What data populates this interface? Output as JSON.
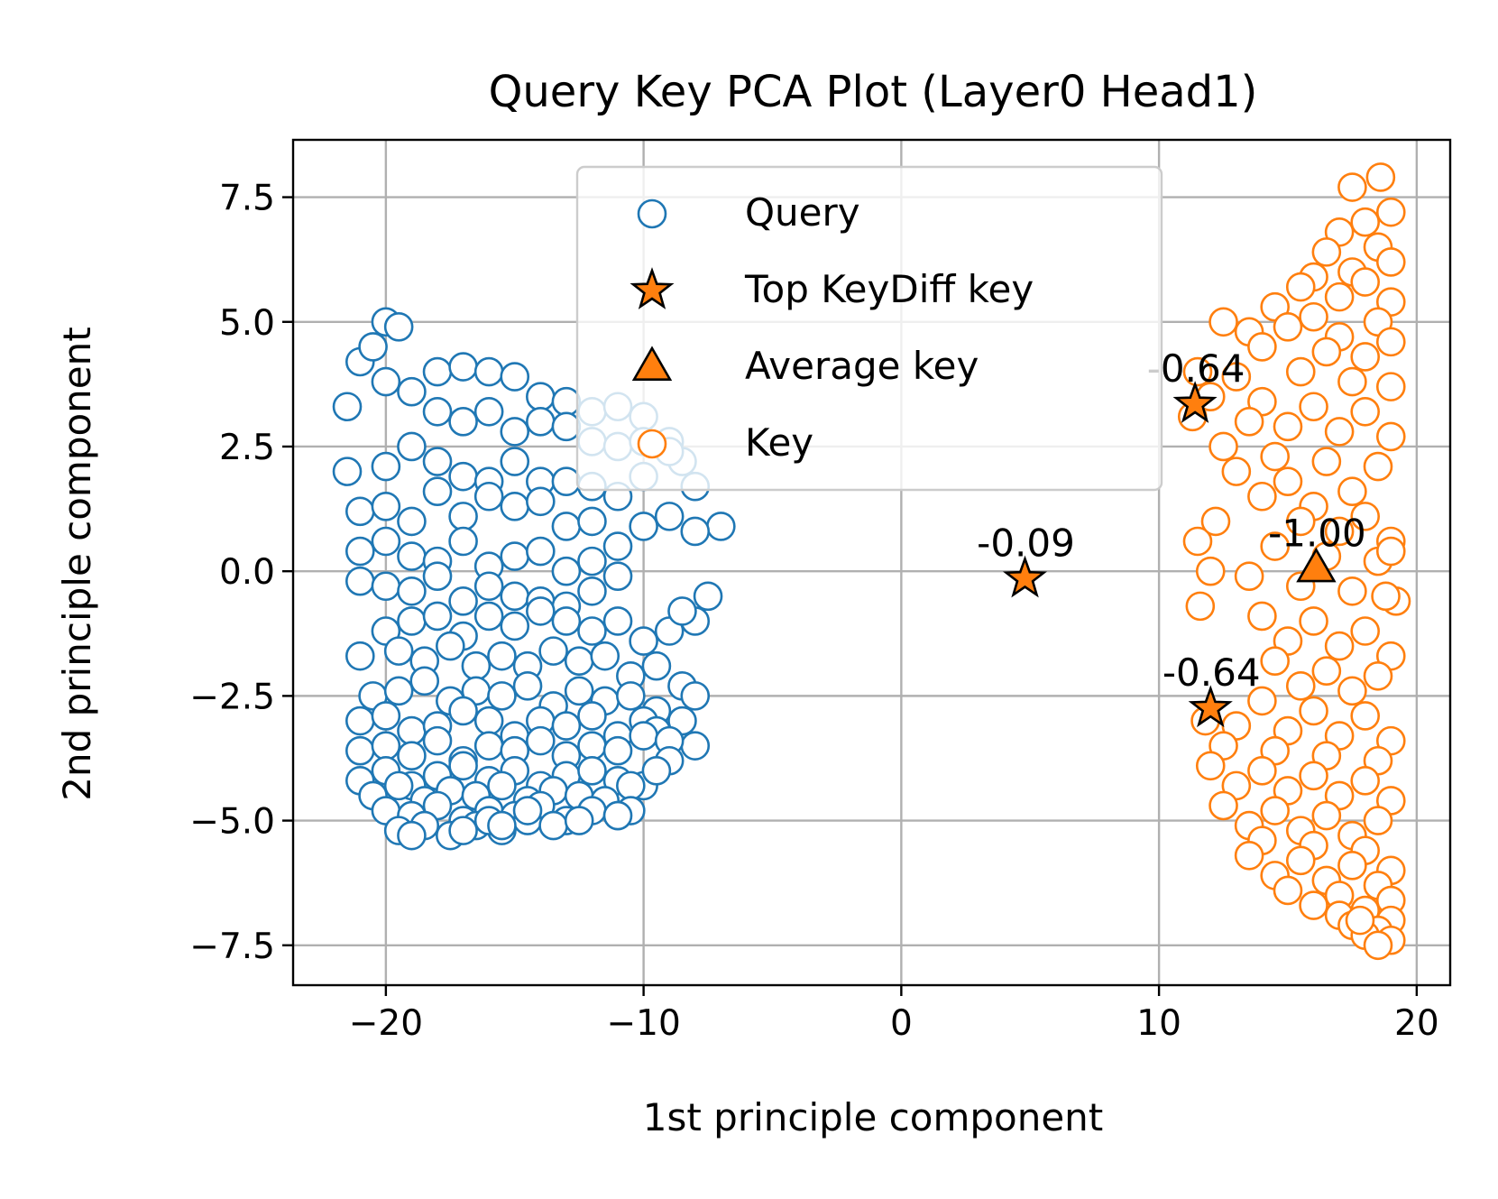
{
  "chart_data": {
    "type": "scatter",
    "title": "Query Key PCA Plot (Layer0 Head1)",
    "xlabel": "1st principle component",
    "ylabel": "2nd principle component",
    "xlim": [
      -23.6,
      21.3
    ],
    "ylim": [
      -8.3,
      8.65
    ],
    "xticks": [
      -20,
      -10,
      0,
      10,
      20
    ],
    "xtick_labels": [
      "−20",
      "−10",
      "0",
      "10",
      "20"
    ],
    "yticks": [
      -7.5,
      -5.0,
      -2.5,
      0.0,
      2.5,
      5.0,
      7.5
    ],
    "ytick_labels": [
      "−7.5",
      "−5.0",
      "−2.5",
      "0.0",
      "2.5",
      "5.0",
      "7.5"
    ],
    "grid": true,
    "legend": {
      "position": "upper-center",
      "entries": [
        {
          "label": "Query",
          "marker": "circle",
          "color": "#1f77b4"
        },
        {
          "label": "Top KeyDiff key",
          "marker": "star",
          "color": "#ff7f0e"
        },
        {
          "label": "Average key",
          "marker": "triangle",
          "color": "#ff7f0e"
        },
        {
          "label": "Key",
          "marker": "circle",
          "color": "#ff7f0e"
        }
      ]
    },
    "series": [
      {
        "name": "Query",
        "marker": "circle-open",
        "color": "#1f77b4",
        "x": [
          -20.0,
          -19.5,
          -21.0,
          -20.5,
          -18.0,
          -17.0,
          -16.0,
          -15.0,
          -14.0,
          -13.0,
          -12.0,
          -11.0,
          -10.0,
          -9.0,
          -8.5,
          -21.5,
          -20.0,
          -19.0,
          -18.0,
          -17.0,
          -16.0,
          -15.0,
          -14.0,
          -13.0,
          -12.0,
          -11.0,
          -10.0,
          -9.0,
          -8.0,
          -7.0,
          -21.5,
          -20.0,
          -19.0,
          -18.0,
          -17.0,
          -16.0,
          -15.0,
          -14.0,
          -13.0,
          -12.0,
          -11.0,
          -10.0,
          -21.0,
          -20.0,
          -19.0,
          -18.0,
          -17.0,
          -16.0,
          -15.0,
          -14.0,
          -13.0,
          -12.0,
          -11.0,
          -10.0,
          -9.0,
          -8.0,
          -21.0,
          -20.0,
          -19.0,
          -18.0,
          -17.0,
          -16.0,
          -15.0,
          -14.0,
          -13.0,
          -12.0,
          -11.0,
          -21.0,
          -20.0,
          -19.0,
          -18.0,
          -17.0,
          -16.0,
          -15.0,
          -14.0,
          -13.0,
          -12.0,
          -20.0,
          -19.0,
          -18.0,
          -17.0,
          -16.0,
          -15.0,
          -14.0,
          -13.0,
          -12.0,
          -11.0,
          -10.0,
          -9.0,
          -21.0,
          -19.5,
          -18.5,
          -17.5,
          -16.5,
          -15.5,
          -14.5,
          -13.5,
          -12.5,
          -11.5,
          -10.5,
          -9.5,
          -8.5,
          -20.5,
          -19.5,
          -18.5,
          -17.5,
          -16.5,
          -15.5,
          -14.5,
          -13.5,
          -12.5,
          -11.5,
          -10.5,
          -9.5,
          -8.5,
          -8.0,
          -21.0,
          -20.0,
          -19.0,
          -18.0,
          -17.0,
          -16.0,
          -15.0,
          -14.0,
          -13.0,
          -12.0,
          -11.0,
          -10.0,
          -9.5,
          -8.0,
          -7.5,
          -21.0,
          -20.0,
          -19.0,
          -18.0,
          -17.0,
          -16.0,
          -15.0,
          -14.0,
          -13.0,
          -12.0,
          -11.0,
          -10.0,
          -9.0,
          -8.0,
          -21.0,
          -20.0,
          -19.0,
          -18.0,
          -17.0,
          -16.0,
          -15.0,
          -14.0,
          -13.0,
          -12.0,
          -11.0,
          -10.0,
          -9.0,
          -8.5,
          -20.5,
          -19.5,
          -18.5,
          -17.5,
          -16.5,
          -15.5,
          -14.5,
          -13.5,
          -12.5,
          -11.5,
          -10.5,
          -9.5,
          -20.0,
          -19.0,
          -18.0,
          -17.0,
          -16.0,
          -15.0,
          -14.0,
          -13.0,
          -12.0,
          -11.0,
          -10.5,
          -19.5,
          -18.5,
          -17.5,
          -16.5,
          -15.5,
          -14.5,
          -13.5,
          -12.5,
          -11.0,
          -19.0,
          -17.0,
          -16.0,
          -15.5,
          -14.5
        ],
        "y": [
          5.0,
          4.9,
          4.2,
          4.5,
          4.0,
          4.1,
          4.0,
          3.9,
          3.5,
          3.4,
          3.2,
          3.3,
          3.1,
          2.6,
          2.2,
          3.3,
          3.8,
          3.6,
          3.2,
          3.0,
          3.2,
          2.8,
          3.0,
          2.9,
          2.6,
          2.5,
          2.6,
          2.4,
          1.7,
          0.9,
          2.0,
          2.1,
          2.5,
          2.2,
          1.9,
          1.8,
          2.2,
          1.8,
          1.8,
          1.7,
          1.5,
          1.9,
          1.2,
          1.3,
          1.0,
          1.6,
          1.1,
          1.5,
          1.3,
          1.4,
          0.9,
          1.0,
          0.5,
          0.9,
          1.1,
          0.8,
          0.4,
          0.6,
          0.3,
          0.2,
          0.6,
          0.1,
          0.3,
          0.4,
          0.0,
          0.2,
          -0.1,
          -0.2,
          -0.3,
          -0.4,
          -0.1,
          -0.6,
          -0.3,
          -0.5,
          -0.6,
          -0.7,
          -0.4,
          -1.2,
          -1.0,
          -0.9,
          -1.3,
          -0.9,
          -1.1,
          -0.8,
          -1.0,
          -1.2,
          -1.0,
          -1.4,
          -1.2,
          -1.7,
          -1.6,
          -1.8,
          -1.5,
          -1.9,
          -1.7,
          -1.9,
          -1.6,
          -1.8,
          -1.7,
          -2.1,
          -1.9,
          -2.3,
          -2.5,
          -2.4,
          -2.2,
          -2.6,
          -2.4,
          -2.5,
          -2.3,
          -2.7,
          -2.4,
          -2.6,
          -2.5,
          -2.8,
          -3.0,
          -2.5,
          -3.0,
          -2.9,
          -3.2,
          -3.1,
          -2.8,
          -3.0,
          -3.3,
          -3.0,
          -3.1,
          -2.9,
          -3.3,
          -3.0,
          -3.2,
          -3.5,
          -0.5,
          -3.6,
          -3.5,
          -3.7,
          -3.4,
          -3.8,
          -3.5,
          -3.6,
          -3.4,
          -3.7,
          -3.5,
          -3.6,
          -3.3,
          -3.4,
          -1.0,
          -4.2,
          -4.0,
          -4.3,
          -4.1,
          -3.9,
          -4.2,
          -4.0,
          -4.3,
          -4.1,
          -4.0,
          -4.2,
          -4.3,
          -3.8,
          -0.8,
          -4.5,
          -4.3,
          -4.6,
          -4.4,
          -4.5,
          -4.3,
          -4.6,
          -4.4,
          -4.5,
          -4.6,
          -4.3,
          -4.0,
          -4.8,
          -4.9,
          -4.7,
          -5.0,
          -4.8,
          -4.9,
          -4.7,
          -5.0,
          -4.8,
          -4.9,
          -4.8,
          -5.2,
          -5.1,
          -5.3,
          -5.1,
          -5.2,
          -5.0,
          -5.1,
          -5.0,
          -4.9,
          -5.3,
          -5.2,
          -5.0,
          -5.1,
          -4.8
        ]
      },
      {
        "name": "Key",
        "marker": "circle-open",
        "color": "#ff7f0e",
        "x": [
          18.6,
          17.5,
          19.0,
          18.0,
          17.0,
          18.5,
          16.5,
          19.0,
          17.5,
          16.0,
          18.0,
          15.5,
          17.0,
          19.0,
          14.5,
          16.0,
          18.5,
          15.0,
          13.5,
          17.0,
          19.0,
          12.5,
          14.0,
          16.5,
          18.0,
          11.5,
          13.0,
          15.5,
          17.5,
          19.0,
          12.0,
          14.0,
          16.0,
          18.0,
          11.3,
          13.5,
          15.0,
          17.0,
          19.0,
          12.5,
          14.5,
          16.5,
          18.5,
          13.0,
          15.0,
          17.5,
          14.0,
          16.0,
          18.0,
          15.5,
          17.0,
          19.0,
          14.5,
          16.5,
          18.5,
          12.0,
          13.5,
          15.5,
          17.5,
          19.2,
          11.6,
          14.0,
          16.0,
          18.0,
          15.0,
          17.0,
          19.0,
          14.5,
          16.5,
          18.5,
          15.5,
          17.5,
          14.0,
          16.0,
          18.0,
          11.8,
          13.0,
          15.0,
          17.0,
          19.0,
          12.5,
          14.5,
          16.5,
          18.5,
          12.0,
          14.0,
          16.0,
          18.0,
          13.0,
          15.0,
          17.0,
          19.0,
          12.5,
          14.5,
          16.5,
          18.5,
          13.5,
          15.5,
          17.5,
          14.0,
          16.0,
          18.0,
          13.5,
          15.5,
          17.5,
          19.0,
          14.5,
          16.5,
          18.5,
          15.0,
          17.0,
          19.0,
          16.0,
          18.0,
          17.0,
          19.0,
          17.5,
          18.5,
          18.0,
          19.0,
          18.5,
          17.8,
          11.5,
          12.2,
          19.0,
          18.8
        ],
        "y": [
          7.9,
          7.7,
          7.2,
          7.0,
          6.8,
          6.5,
          6.4,
          6.2,
          6.0,
          5.9,
          5.8,
          5.7,
          5.5,
          5.4,
          5.3,
          5.1,
          5.0,
          4.9,
          4.8,
          4.7,
          4.6,
          5.0,
          4.5,
          4.4,
          4.3,
          4.0,
          3.9,
          4.0,
          3.8,
          3.7,
          3.5,
          3.4,
          3.3,
          3.2,
          3.1,
          3.0,
          2.9,
          2.8,
          2.7,
          2.5,
          2.3,
          2.2,
          2.1,
          2.0,
          1.8,
          1.6,
          1.5,
          1.3,
          1.1,
          1.0,
          0.8,
          0.6,
          0.5,
          0.3,
          0.2,
          0.0,
          -0.1,
          -0.3,
          -0.4,
          -0.6,
          -0.7,
          -0.9,
          -1.0,
          -1.2,
          -1.4,
          -1.5,
          -1.7,
          -1.8,
          -2.0,
          -2.1,
          -2.3,
          -2.4,
          -2.6,
          -2.8,
          -2.9,
          -3.0,
          -3.1,
          -3.2,
          -3.3,
          -3.4,
          -3.5,
          -3.6,
          -3.7,
          -3.8,
          -3.9,
          -4.0,
          -4.1,
          -4.2,
          -4.3,
          -4.4,
          -4.5,
          -4.6,
          -4.7,
          -4.8,
          -4.9,
          -5.0,
          -5.1,
          -5.2,
          -5.3,
          -5.4,
          -5.5,
          -5.6,
          -5.7,
          -5.8,
          -5.9,
          -6.0,
          -6.1,
          -6.2,
          -6.3,
          -6.4,
          -6.5,
          -6.6,
          -6.7,
          -6.8,
          -6.9,
          -7.0,
          -7.1,
          -7.2,
          -7.3,
          -7.4,
          -7.5,
          -7.0,
          0.6,
          1.0,
          0.4,
          -0.5
        ]
      },
      {
        "name": "Top KeyDiff key",
        "marker": "star",
        "color": "#ff7f0e",
        "x": [
          4.8,
          11.4,
          12.0
        ],
        "y": [
          -0.15,
          3.35,
          -2.75
        ],
        "labels": [
          "-0.09",
          "-0.64",
          "-0.64"
        ]
      },
      {
        "name": "Average key",
        "marker": "triangle",
        "color": "#ff7f0e",
        "x": [
          16.1
        ],
        "y": [
          0.05
        ],
        "labels": [
          "-1.00"
        ]
      }
    ]
  }
}
